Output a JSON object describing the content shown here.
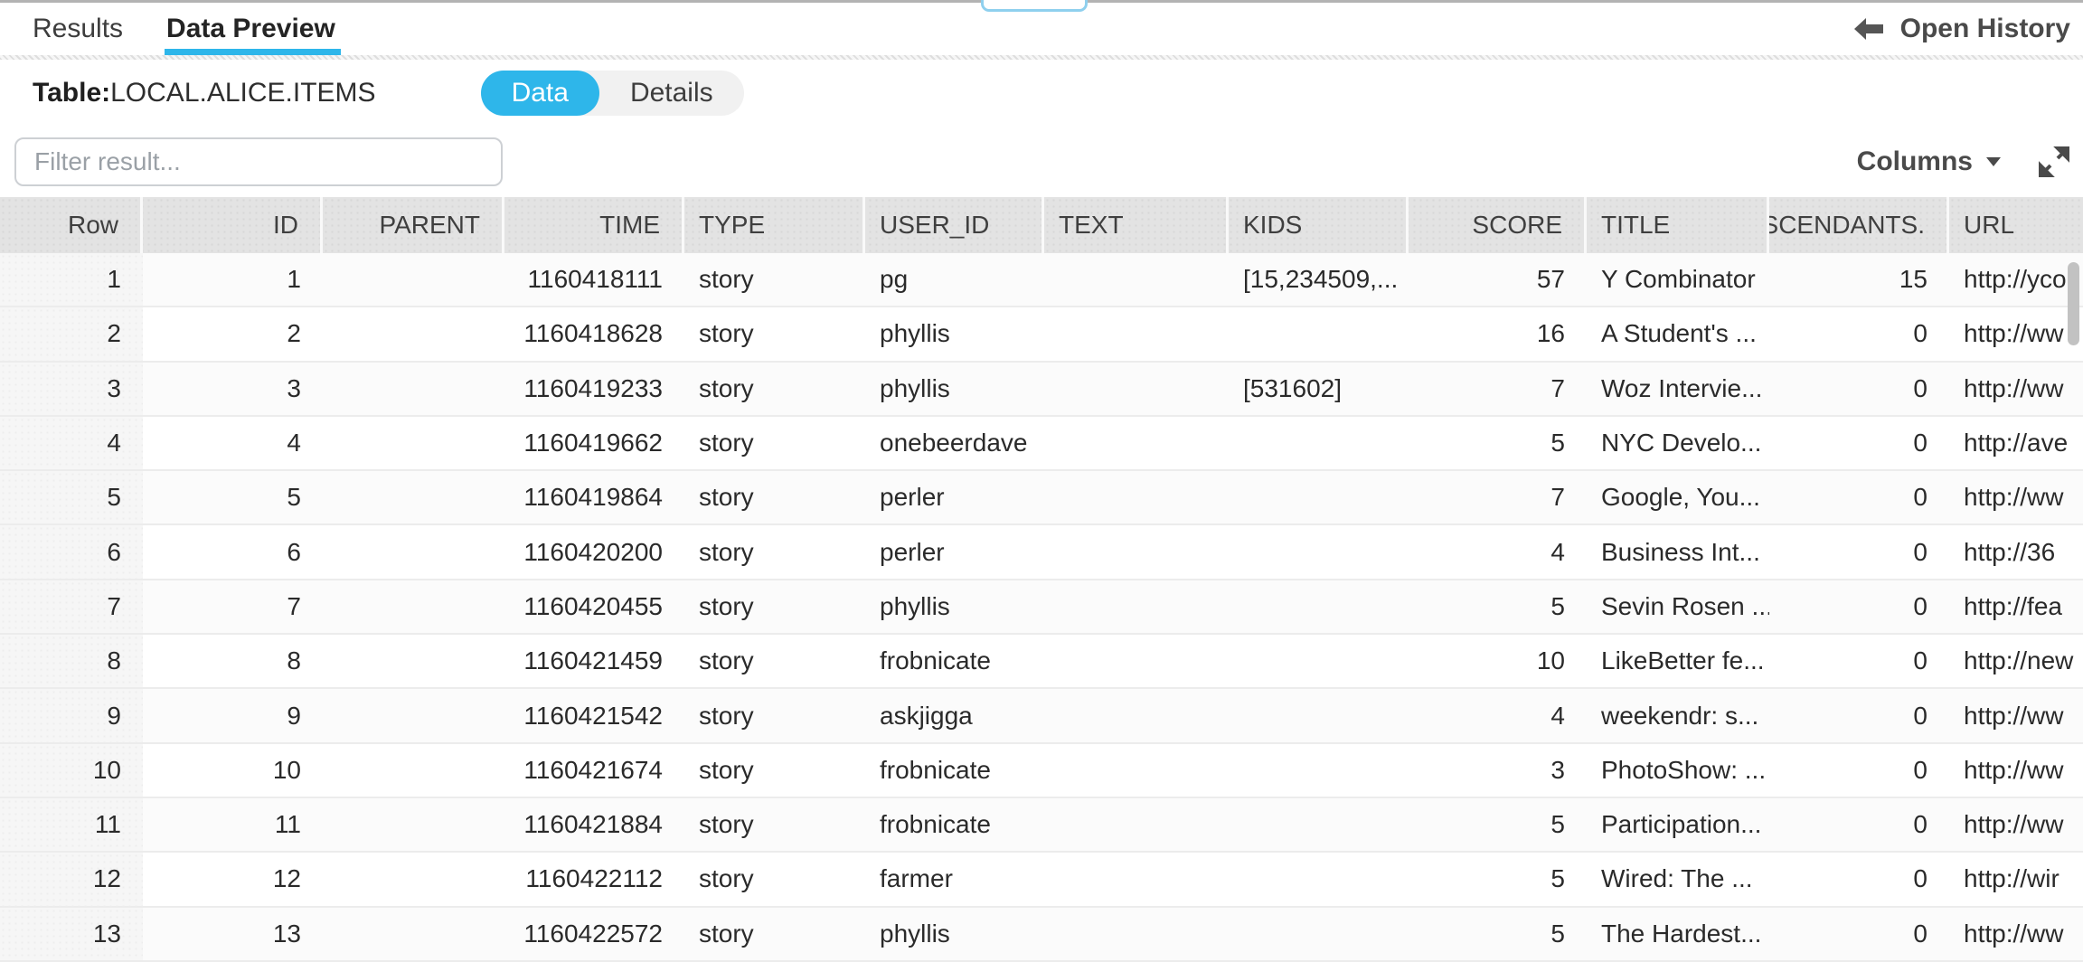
{
  "colors": {
    "accent": "#2eb6ea",
    "scrollbar": "#c2c2c2"
  },
  "tabs": [
    {
      "label": "Results",
      "active": false
    },
    {
      "label": "Data Preview",
      "active": true
    }
  ],
  "open_history": {
    "label": "Open History"
  },
  "toolbar": {
    "table_label": "Table:",
    "table_name": "LOCAL.ALICE.ITEMS",
    "segments": [
      {
        "label": "Data",
        "active": true
      },
      {
        "label": "Details",
        "active": false
      }
    ]
  },
  "filter": {
    "placeholder": "Filter result..."
  },
  "columns_menu": {
    "label": "Columns"
  },
  "table": {
    "headers": [
      {
        "label": "Row",
        "align": "right"
      },
      {
        "label": "ID",
        "align": "right"
      },
      {
        "label": "PARENT",
        "align": "right"
      },
      {
        "label": "TIME",
        "align": "right"
      },
      {
        "label": "TYPE",
        "align": "left"
      },
      {
        "label": "USER_ID",
        "align": "left"
      },
      {
        "label": "TEXT",
        "align": "left"
      },
      {
        "label": "KIDS",
        "align": "left"
      },
      {
        "label": "SCORE",
        "align": "right"
      },
      {
        "label": "TITLE",
        "align": "left"
      },
      {
        "label": "DESCENDANTS.",
        "align": "right"
      },
      {
        "label": "URL",
        "align": "left"
      }
    ],
    "rows": [
      [
        "1",
        "1",
        "",
        "1160418111",
        "story",
        "pg",
        "",
        "[15,234509,...",
        "57",
        "Y Combinator",
        "15",
        "http://yco"
      ],
      [
        "2",
        "2",
        "",
        "1160418628",
        "story",
        "phyllis",
        "",
        "",
        "16",
        "A Student's ...",
        "0",
        "http://ww"
      ],
      [
        "3",
        "3",
        "",
        "1160419233",
        "story",
        "phyllis",
        "",
        "[531602]",
        "7",
        "Woz Intervie...",
        "0",
        "http://ww"
      ],
      [
        "4",
        "4",
        "",
        "1160419662",
        "story",
        "onebeerdave",
        "",
        "",
        "5",
        "NYC Develo...",
        "0",
        "http://ave"
      ],
      [
        "5",
        "5",
        "",
        "1160419864",
        "story",
        "perler",
        "",
        "",
        "7",
        "Google, You...",
        "0",
        "http://ww"
      ],
      [
        "6",
        "6",
        "",
        "1160420200",
        "story",
        "perler",
        "",
        "",
        "4",
        "Business Int...",
        "0",
        "http://36"
      ],
      [
        "7",
        "7",
        "",
        "1160420455",
        "story",
        "phyllis",
        "",
        "",
        "5",
        "Sevin Rosen ...",
        "0",
        "http://fea"
      ],
      [
        "8",
        "8",
        "",
        "1160421459",
        "story",
        "frobnicate",
        "",
        "",
        "10",
        "LikeBetter fe...",
        "0",
        "http://new"
      ],
      [
        "9",
        "9",
        "",
        "1160421542",
        "story",
        "askjigga",
        "",
        "",
        "4",
        "weekendr: s...",
        "0",
        "http://ww"
      ],
      [
        "10",
        "10",
        "",
        "1160421674",
        "story",
        "frobnicate",
        "",
        "",
        "3",
        "PhotoShow: ...",
        "0",
        "http://ww"
      ],
      [
        "11",
        "11",
        "",
        "1160421884",
        "story",
        "frobnicate",
        "",
        "",
        "5",
        "Participation...",
        "0",
        "http://ww"
      ],
      [
        "12",
        "12",
        "",
        "1160422112",
        "story",
        "farmer",
        "",
        "",
        "5",
        "Wired: The ...",
        "0",
        "http://wir"
      ],
      [
        "13",
        "13",
        "",
        "1160422572",
        "story",
        "phyllis",
        "",
        "",
        "5",
        "The Hardest...",
        "0",
        "http://ww"
      ]
    ]
  }
}
